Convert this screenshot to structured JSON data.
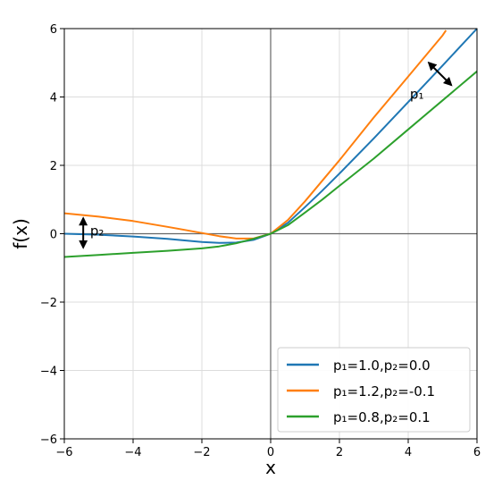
{
  "chart_data": {
    "type": "line",
    "xlabel": "x",
    "ylabel": "f(x)",
    "xlim": [
      -6,
      6
    ],
    "ylim": [
      -6,
      6
    ],
    "xticks": [
      -6,
      -4,
      -2,
      0,
      2,
      4,
      6
    ],
    "yticks": [
      -6,
      -4,
      -2,
      0,
      2,
      4,
      6
    ],
    "xtick_labels": [
      "−6",
      "−4",
      "−2",
      "0",
      "2",
      "4",
      "6"
    ],
    "ytick_labels": [
      "−6",
      "−4",
      "−2",
      "0",
      "2",
      "4",
      "6"
    ],
    "grid": true,
    "legend_position": "lower-right",
    "annotations": [
      "p₁",
      "p₂"
    ],
    "series": [
      {
        "name": "p₁=1.0,p₂=0.0",
        "color": "#1f77b4",
        "x": [
          -6,
          -5,
          -4,
          -3,
          -2,
          -1.5,
          -1,
          -0.5,
          0,
          0.5,
          1,
          1.5,
          2,
          3,
          4,
          5,
          6
        ],
        "y": [
          0.0,
          -0.03,
          -0.08,
          -0.15,
          -0.24,
          -0.27,
          -0.26,
          -0.18,
          0.0,
          0.32,
          0.78,
          1.26,
          1.76,
          2.79,
          3.85,
          4.92,
          6.0
        ]
      },
      {
        "name": "p₁=1.2,p₂=-0.1",
        "color": "#ff7f0e",
        "x": [
          -6,
          -5,
          -4,
          -3,
          -2,
          -1.5,
          -1,
          -0.5,
          0,
          0.5,
          1,
          1.5,
          2,
          3,
          4,
          5,
          5.1
        ],
        "y": [
          0.6,
          0.5,
          0.37,
          0.2,
          0.02,
          -0.07,
          -0.14,
          -0.14,
          0.0,
          0.4,
          0.95,
          1.55,
          2.15,
          3.4,
          4.6,
          5.8,
          5.95
        ]
      },
      {
        "name": "p₁=0.8,p₂=0.1",
        "color": "#2ca02c",
        "x": [
          -6,
          -5,
          -4,
          -3,
          -2,
          -1.5,
          -1,
          -0.5,
          0,
          0.5,
          1,
          1.5,
          2,
          3,
          4,
          5,
          6
        ],
        "y": [
          -0.68,
          -0.62,
          -0.56,
          -0.5,
          -0.43,
          -0.37,
          -0.28,
          -0.15,
          0.0,
          0.25,
          0.62,
          1.0,
          1.4,
          2.2,
          3.05,
          3.9,
          4.75
        ]
      }
    ]
  }
}
